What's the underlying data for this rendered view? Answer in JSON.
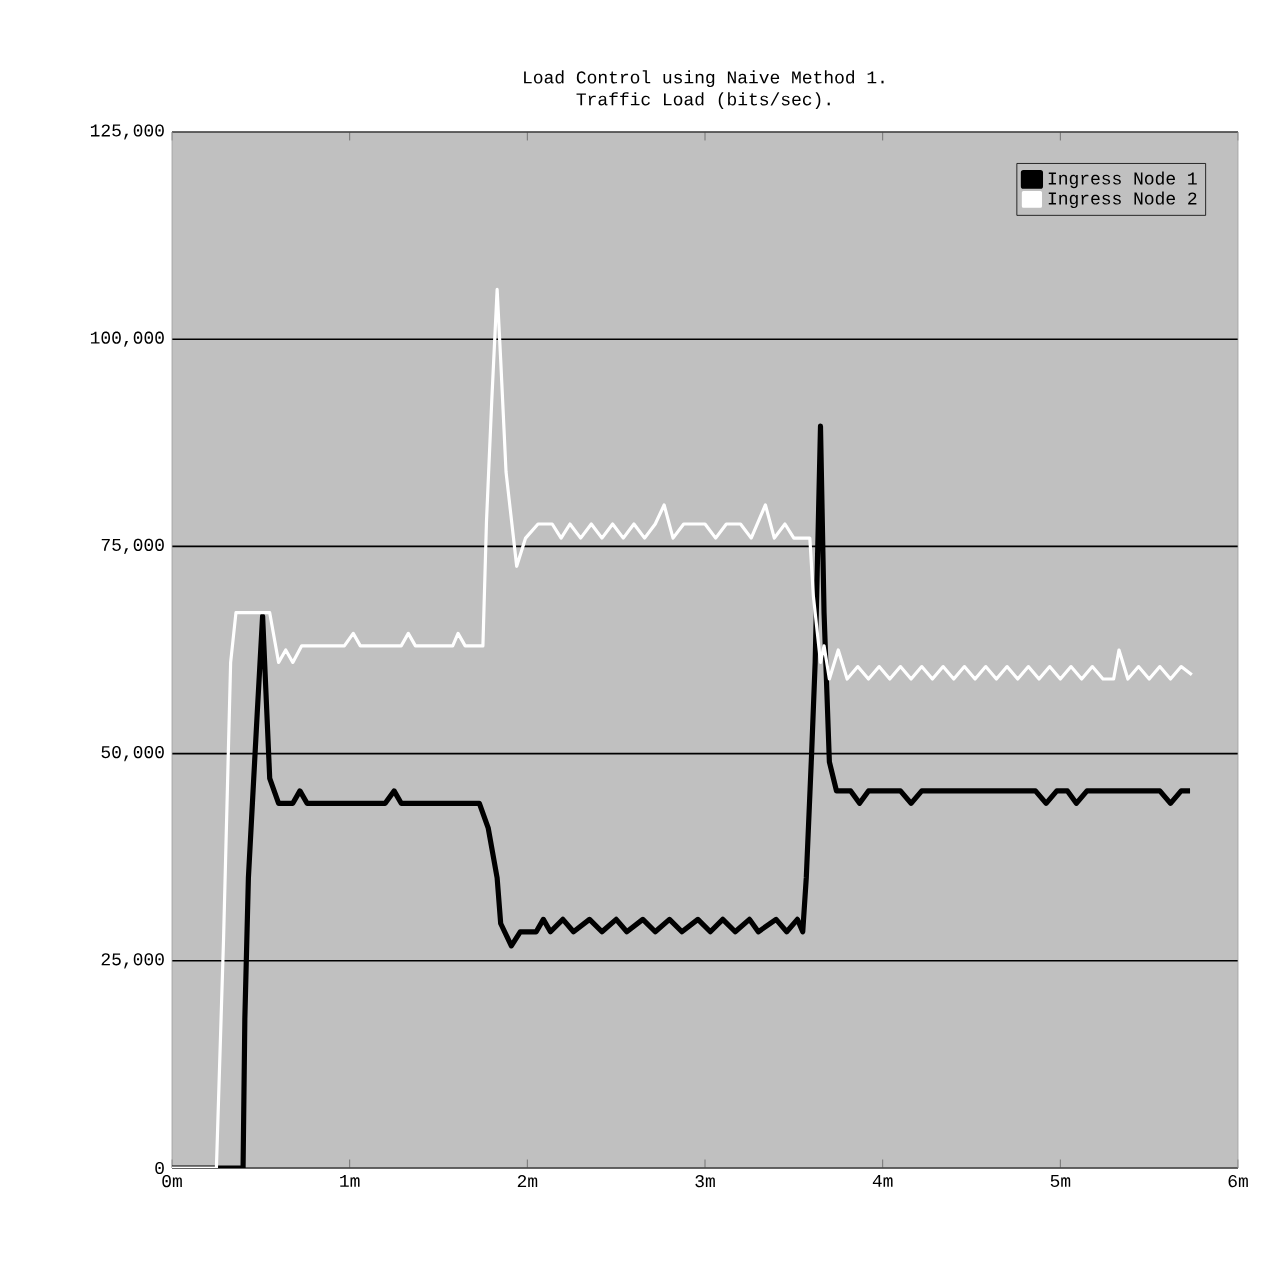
{
  "chart_data": {
    "type": "line",
    "title": "Load Control using Naive Method 1.",
    "subtitle": "Traffic Load (bits/sec).",
    "xlim": [
      0,
      6
    ],
    "xticks": [
      {
        "value": 0,
        "label": "0m"
      },
      {
        "value": 1,
        "label": "1m"
      },
      {
        "value": 2,
        "label": "2m"
      },
      {
        "value": 3,
        "label": "3m"
      },
      {
        "value": 4,
        "label": "4m"
      },
      {
        "value": 5,
        "label": "5m"
      },
      {
        "value": 6,
        "label": "6m"
      }
    ],
    "ylim": [
      0,
      125000
    ],
    "yticks": [
      {
        "value": 0,
        "label": "0"
      },
      {
        "value": 25000,
        "label": "25,000"
      },
      {
        "value": 50000,
        "label": "50,000"
      },
      {
        "value": 75000,
        "label": "75,000"
      },
      {
        "value": 100000,
        "label": "100,000"
      },
      {
        "value": 125000,
        "label": "125,000"
      }
    ],
    "grid": "y",
    "legend": "top right",
    "series": [
      {
        "name": "Ingress Node 1",
        "color": "#000000",
        "x": [
          0,
          0.4,
          0.41,
          0.43,
          0.48,
          0.51,
          0.55,
          0.6,
          0.68,
          0.72,
          0.76,
          1.2,
          1.25,
          1.29,
          1.73,
          1.78,
          1.83,
          1.85,
          1.91,
          1.96,
          2.05,
          2.09,
          2.13,
          2.2,
          2.26,
          2.35,
          2.42,
          2.5,
          2.56,
          2.65,
          2.72,
          2.8,
          2.87,
          2.96,
          3.03,
          3.1,
          3.17,
          3.25,
          3.3,
          3.4,
          3.46,
          3.52,
          3.55,
          3.57,
          3.6,
          3.62,
          3.65,
          3.67,
          3.7,
          3.74,
          3.82,
          3.87,
          3.92,
          4.1,
          4.16,
          4.22,
          4.86,
          4.92,
          4.98,
          5.04,
          5.09,
          5.15,
          5.56,
          5.62,
          5.68,
          5.73
        ],
        "values": [
          0,
          0,
          18000,
          35000,
          55000,
          66600,
          47000,
          44000,
          44000,
          45500,
          44000,
          44000,
          45500,
          44000,
          44000,
          41000,
          35000,
          29500,
          26800,
          28500,
          28500,
          30000,
          28500,
          30000,
          28500,
          30000,
          28500,
          30000,
          28500,
          30000,
          28500,
          30000,
          28500,
          30000,
          28500,
          30000,
          28500,
          30000,
          28500,
          30000,
          28500,
          30000,
          28500,
          35000,
          50000,
          61000,
          89500,
          67000,
          49000,
          45500,
          45500,
          44000,
          45500,
          45500,
          44000,
          45500,
          45500,
          44000,
          45500,
          45500,
          44000,
          45500,
          45500,
          44000,
          45500,
          45500
        ]
      },
      {
        "name": "Ingress Node 2",
        "color": "#ffffff",
        "x": [
          0,
          0.25,
          0.29,
          0.33,
          0.36,
          0.55,
          0.6,
          0.64,
          0.68,
          0.73,
          0.97,
          1.02,
          1.06,
          1.29,
          1.33,
          1.37,
          1.58,
          1.61,
          1.65,
          1.75,
          1.77,
          1.8,
          1.83,
          1.85,
          1.88,
          1.94,
          1.99,
          2.06,
          2.14,
          2.19,
          2.24,
          2.3,
          2.36,
          2.42,
          2.48,
          2.54,
          2.6,
          2.66,
          2.72,
          2.77,
          2.82,
          2.88,
          3.0,
          3.06,
          3.12,
          3.2,
          3.26,
          3.34,
          3.39,
          3.45,
          3.5,
          3.59,
          3.61,
          3.65,
          3.67,
          3.7,
          3.75,
          3.8,
          3.86,
          3.92,
          3.98,
          4.04,
          4.1,
          4.16,
          4.22,
          4.28,
          4.34,
          4.4,
          4.46,
          4.52,
          4.58,
          4.64,
          4.7,
          4.76,
          4.82,
          4.88,
          4.94,
          5.0,
          5.06,
          5.12,
          5.18,
          5.24,
          5.3,
          5.33,
          5.38,
          5.44,
          5.5,
          5.56,
          5.62,
          5.68,
          5.74
        ],
        "values": [
          0,
          0,
          27500,
          61000,
          67000,
          67000,
          61000,
          62500,
          61000,
          63000,
          63000,
          64500,
          63000,
          63000,
          64500,
          63000,
          63000,
          64500,
          63000,
          63000,
          78000,
          92700,
          106000,
          97500,
          84000,
          72600,
          76000,
          77700,
          77700,
          76000,
          77700,
          76000,
          77700,
          76000,
          77700,
          76000,
          77700,
          76000,
          77700,
          80000,
          76000,
          77700,
          77700,
          76000,
          77700,
          77700,
          76000,
          80000,
          76000,
          77700,
          76000,
          76000,
          69000,
          61000,
          63000,
          59000,
          62500,
          59000,
          60500,
          59000,
          60500,
          59000,
          60500,
          59000,
          60500,
          59000,
          60500,
          59000,
          60500,
          59000,
          60500,
          59000,
          60500,
          59000,
          60500,
          59000,
          60500,
          59000,
          60500,
          59000,
          60500,
          59000,
          59000,
          62500,
          59000,
          60500,
          59000,
          60500,
          59000,
          60500,
          59500
        ]
      }
    ]
  }
}
